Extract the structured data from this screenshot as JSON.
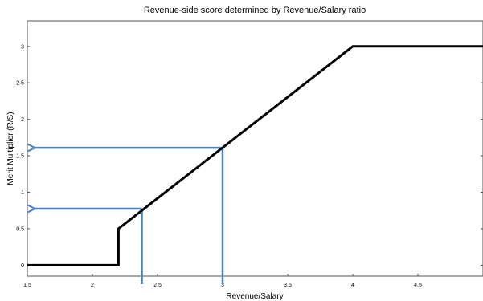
{
  "chart_data": {
    "type": "line",
    "title": "Revenue-side score determined by Revenue/Salary ratio",
    "xlabel": "Revenue/Salary",
    "ylabel": "Merit Multiplier (R/S)",
    "xlim": [
      1.5,
      5.0
    ],
    "ylim": [
      -0.15,
      3.35
    ],
    "x_ticks": [
      "1.5",
      "2",
      "2.5",
      "3",
      "3.5",
      "4",
      "4.5"
    ],
    "x_tick_values": [
      1.5,
      2,
      2.5,
      3,
      3.5,
      4,
      4.5
    ],
    "y_ticks": [
      "0",
      "0.5",
      "1",
      "1.5",
      "2",
      "2.5",
      "3"
    ],
    "y_tick_values": [
      0,
      0.5,
      1,
      1.5,
      2,
      2.5,
      3
    ],
    "grid": false,
    "series": [
      {
        "color": "#000000",
        "x": [
          1.5,
          2.2,
          2.2,
          4.0,
          5.0
        ],
        "y": [
          0,
          0,
          0.5,
          3.0,
          3.0
        ]
      }
    ],
    "annotations": [
      {
        "type": "arrow-lookup",
        "color": "#4f81bd",
        "x": 2.38,
        "y": 0.775
      },
      {
        "type": "arrow-lookup",
        "color": "#4f81bd",
        "x": 3.0,
        "y": 1.61
      }
    ]
  }
}
